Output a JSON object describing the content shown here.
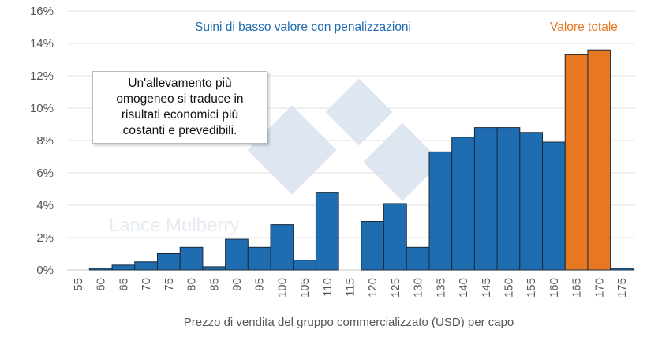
{
  "chart_data": {
    "type": "bar",
    "xlabel": "Prezzo di vendita del gruppo commercializzato (USD) per capo",
    "ylabel": "",
    "ylim": [
      0,
      16
    ],
    "yticks": [
      "0%",
      "2%",
      "4%",
      "6%",
      "8%",
      "10%",
      "12%",
      "14%",
      "16%"
    ],
    "grid": true,
    "categories": [
      "55",
      "60",
      "65",
      "70",
      "75",
      "80",
      "85",
      "90",
      "95",
      "100",
      "105",
      "110",
      "115",
      "120",
      "125",
      "130",
      "135",
      "140",
      "145",
      "150",
      "155",
      "160",
      "165",
      "170",
      "175"
    ],
    "values": [
      0,
      0.1,
      0.3,
      0.5,
      1.0,
      1.4,
      0.2,
      1.9,
      1.4,
      2.8,
      0.6,
      4.8,
      0,
      3.0,
      4.1,
      1.4,
      7.3,
      8.2,
      8.8,
      8.8,
      8.5,
      7.9,
      13.3,
      13.6,
      0.1
    ],
    "groups": [
      "blue",
      "blue",
      "blue",
      "blue",
      "blue",
      "blue",
      "blue",
      "blue",
      "blue",
      "blue",
      "blue",
      "blue",
      "blue",
      "blue",
      "blue",
      "blue",
      "blue",
      "blue",
      "blue",
      "blue",
      "blue",
      "blue",
      "orange",
      "orange",
      "blue"
    ],
    "colors": {
      "blue": "#1f6cb0",
      "orange": "#e87722"
    },
    "annotations": {
      "low_value": "Suini di basso valore con penalizzazioni",
      "total_value": "Valore totale",
      "note": "Un'allevamento più\nomogeneo si traduce in\nrisultati economici più\ncostanti e prevedibili."
    },
    "watermark": "Lance Mulberry",
    "logo": "333"
  }
}
